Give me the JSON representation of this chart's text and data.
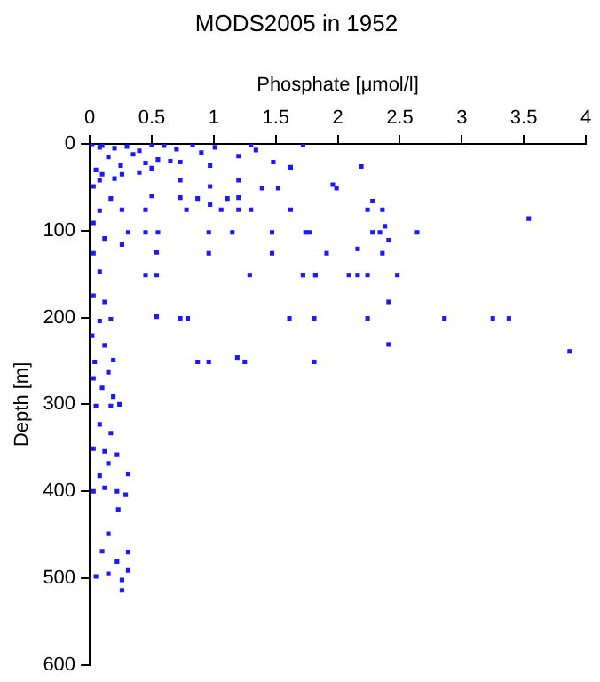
{
  "chart_data": {
    "type": "scatter",
    "title": "MODS2005 in 1952",
    "xlabel": "Phosphate [μmol/l]",
    "ylabel": "Depth [m]",
    "xlim": [
      0,
      4
    ],
    "xticks": [
      0,
      {
        "value": 0.5,
        "label": "0.5"
      },
      1,
      {
        "value": 1.5,
        "label": "1.5"
      },
      2,
      {
        "value": 2.5,
        "label": "2.5"
      },
      3,
      {
        "value": 3.5,
        "label": "3.5"
      },
      4
    ],
    "ylim": [
      600,
      0
    ],
    "yticks": [
      0,
      100,
      200,
      300,
      400,
      500,
      600
    ],
    "grid": false,
    "legend": false,
    "marker": "square",
    "series": [
      {
        "color": "#1a1aff",
        "x": [
          2.19,
          1.96,
          1.99,
          2.28,
          2.24,
          2.36,
          3.54,
          2.38,
          1.74,
          2.28,
          2.34,
          2.64,
          2.41,
          2.16,
          1.91,
          2.36,
          1.72,
          1.82,
          2.09,
          2.16,
          2.24,
          2.48,
          2.41,
          1.81,
          2.24,
          2.86,
          3.25,
          3.38,
          2.41,
          3.87,
          1.81,
          0.08,
          0.5,
          0.83,
          1.01,
          1.3,
          1.34,
          1.72,
          1.48,
          1.62,
          1.2,
          0.97,
          0.73,
          0.5,
          0.26,
          0.08,
          0.03,
          0.73,
          0.97,
          1.2,
          1.39,
          1.52,
          0.17,
          0.5,
          0.73,
          0.87,
          1.11,
          1.2,
          0.97,
          1.06,
          1.2,
          1.3,
          1.62,
          0.45,
          0.26,
          0.78,
          0.08,
          0.03,
          0.31,
          0.45,
          0.55,
          0.96,
          1.15,
          1.47,
          1.77,
          0.12,
          0.26,
          0.54,
          0.96,
          1.47,
          0.03,
          0.45,
          0.54,
          1.29,
          1.72,
          1.82,
          0.08,
          0.03,
          0.12,
          0.54,
          0.73,
          0.79,
          1.61,
          0.08,
          0.17,
          0.02,
          0.12,
          0.87,
          0.96,
          1.19,
          1.25,
          0.04,
          0.19,
          0.15,
          0.03,
          0.1,
          0.05,
          0.17,
          0.24,
          0.19,
          0.08,
          0.17,
          0.03,
          0.12,
          0.22,
          0.15,
          0.31,
          0.08,
          0.03,
          0.12,
          0.22,
          0.29,
          0.23,
          0.15,
          0.1,
          0.31,
          0.22,
          0.05,
          0.15,
          0.26,
          0.31,
          0.26,
          0.02,
          0.1,
          0.2,
          0.3,
          0.4,
          0.6,
          0.7,
          0.9,
          0.15,
          0.35,
          0.55,
          0.65,
          0.05,
          0.25,
          0.45,
          0.1,
          0.2,
          0.4
        ],
        "values": [
          26,
          47,
          51,
          66,
          76,
          76,
          86,
          95,
          102,
          102,
          102,
          102,
          111,
          121,
          126,
          126,
          151,
          151,
          151,
          151,
          151,
          151,
          182,
          201,
          201,
          201,
          201,
          201,
          231,
          239,
          251,
          4,
          1,
          1,
          4,
          1,
          7,
          1,
          21,
          27,
          14,
          25,
          21,
          28,
          35,
          42,
          49,
          42,
          49,
          42,
          51,
          51,
          63,
          60,
          62,
          63,
          63,
          62,
          70,
          76,
          76,
          76,
          76,
          76,
          76,
          76,
          77,
          91,
          102,
          102,
          102,
          102,
          102,
          102,
          102,
          109,
          116,
          125,
          126,
          126,
          126,
          151,
          151,
          151,
          151,
          151,
          147,
          175,
          182,
          199,
          201,
          201,
          201,
          204,
          202,
          221,
          232,
          251,
          251,
          246,
          251,
          251,
          249,
          263,
          270,
          281,
          302,
          302,
          300,
          291,
          323,
          333,
          351,
          354,
          358,
          368,
          380,
          382,
          400,
          396,
          400,
          404,
          421,
          449,
          469,
          470,
          481,
          498,
          495,
          502,
          491,
          514,
          0,
          2,
          5,
          3,
          8,
          2,
          6,
          10,
          15,
          12,
          18,
          20,
          30,
          25,
          22,
          35,
          40,
          33
        ]
      }
    ]
  }
}
